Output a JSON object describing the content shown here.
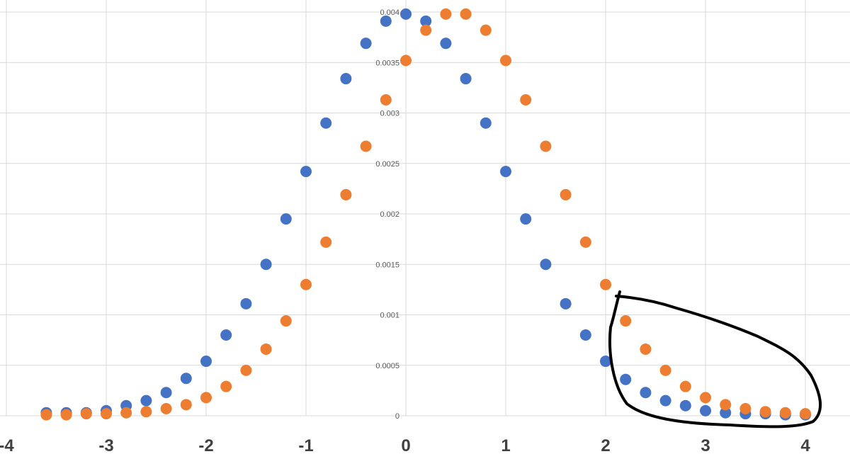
{
  "chart_data": {
    "type": "scatter",
    "xlim": [
      -4,
      4.3
    ],
    "ylim": [
      0,
      0.004
    ],
    "grid": true,
    "x_ticks": [
      "-4",
      "-3",
      "-2",
      "-1",
      "0",
      "1",
      "2",
      "3",
      "4"
    ],
    "y_ticks": [
      "0",
      "0.0005",
      "0.001",
      "0.0015",
      "0.002",
      "0.0025",
      "0.003",
      "0.0035",
      "0.004"
    ],
    "series": [
      {
        "color": "#4472c4",
        "points": [
          [
            -3.6,
            3e-05
          ],
          [
            -3.4,
            3e-05
          ],
          [
            -3.2,
            3e-05
          ],
          [
            -3.0,
            5e-05
          ],
          [
            -2.8,
            0.0001
          ],
          [
            -2.6,
            0.00015
          ],
          [
            -2.4,
            0.00023
          ],
          [
            -2.2,
            0.00037
          ],
          [
            -2.0,
            0.00054
          ],
          [
            -1.8,
            0.0008
          ],
          [
            -1.6,
            0.00111
          ],
          [
            -1.4,
            0.0015
          ],
          [
            -1.2,
            0.00195
          ],
          [
            -1.0,
            0.00242
          ],
          [
            -0.8,
            0.0029
          ],
          [
            -0.6,
            0.00334
          ],
          [
            -0.4,
            0.00369
          ],
          [
            -0.2,
            0.00391
          ],
          [
            0.0,
            0.00398
          ],
          [
            0.2,
            0.00391
          ],
          [
            0.4,
            0.00369
          ],
          [
            0.6,
            0.00334
          ],
          [
            0.8,
            0.0029
          ],
          [
            1.0,
            0.00242
          ],
          [
            1.2,
            0.00195
          ],
          [
            1.4,
            0.0015
          ],
          [
            1.6,
            0.00111
          ],
          [
            1.8,
            0.0008
          ],
          [
            2.0,
            0.00054
          ],
          [
            2.2,
            0.00036
          ],
          [
            2.4,
            0.00023
          ],
          [
            2.6,
            0.00015
          ],
          [
            2.8,
            0.0001
          ],
          [
            3.0,
            5e-05
          ],
          [
            3.2,
            3e-05
          ],
          [
            3.4,
            2e-05
          ],
          [
            3.6,
            2e-05
          ],
          [
            3.8,
            1e-05
          ],
          [
            4.0,
            1e-05
          ]
        ]
      },
      {
        "color": "#ed7d31",
        "points": [
          [
            -3.6,
            1e-05
          ],
          [
            -3.4,
            1e-05
          ],
          [
            -3.2,
            2e-05
          ],
          [
            -3.0,
            2e-05
          ],
          [
            -2.8,
            3e-05
          ],
          [
            -2.6,
            4e-05
          ],
          [
            -2.4,
            7e-05
          ],
          [
            -2.2,
            0.00011
          ],
          [
            -2.0,
            0.00018
          ],
          [
            -1.8,
            0.00029
          ],
          [
            -1.6,
            0.00045
          ],
          [
            -1.4,
            0.00066
          ],
          [
            -1.2,
            0.00094
          ],
          [
            -1.0,
            0.0013
          ],
          [
            -0.8,
            0.00172
          ],
          [
            -0.6,
            0.00219
          ],
          [
            -0.4,
            0.00267
          ],
          [
            -0.2,
            0.00313
          ],
          [
            0.0,
            0.00352
          ],
          [
            0.2,
            0.00382
          ],
          [
            0.4,
            0.00398
          ],
          [
            0.6,
            0.00398
          ],
          [
            0.8,
            0.00382
          ],
          [
            1.0,
            0.00352
          ],
          [
            1.2,
            0.00313
          ],
          [
            1.4,
            0.00267
          ],
          [
            1.6,
            0.00219
          ],
          [
            1.8,
            0.00172
          ],
          [
            2.0,
            0.0013
          ],
          [
            2.2,
            0.00094
          ],
          [
            2.4,
            0.00066
          ],
          [
            2.6,
            0.00045
          ],
          [
            2.8,
            0.00029
          ],
          [
            3.0,
            0.00018
          ],
          [
            3.2,
            0.00011
          ],
          [
            3.4,
            7e-05
          ],
          [
            3.6,
            4e-05
          ],
          [
            3.8,
            3e-05
          ],
          [
            4.0,
            2e-05
          ]
        ]
      }
    ],
    "annotation": "hand-drawn loop around right tail (x 2.2 to 4)"
  }
}
